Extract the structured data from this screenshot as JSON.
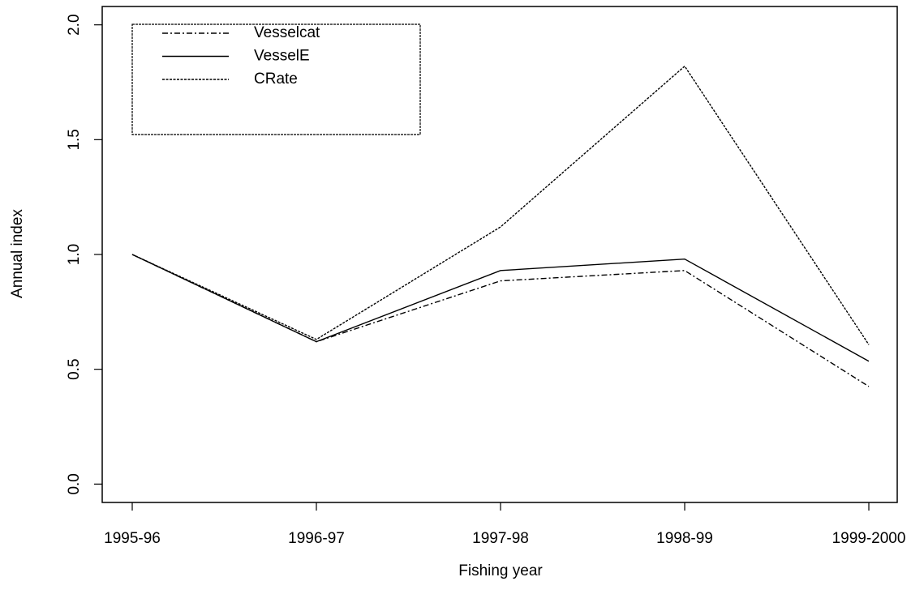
{
  "chart_data": {
    "type": "line",
    "xlabel": "Fishing year",
    "ylabel": "Annual index",
    "categories": [
      "1995-96",
      "1996-97",
      "1997-98",
      "1998-99",
      "1999-2000"
    ],
    "series": [
      {
        "name": "Vesselcat",
        "color": "#000000",
        "linestyle": "dashdot",
        "values": [
          1.0,
          0.62,
          0.885,
          0.93,
          0.425
        ]
      },
      {
        "name": "VesselE",
        "color": "#000000",
        "linestyle": "solid",
        "values": [
          1.0,
          0.62,
          0.93,
          0.98,
          0.535
        ]
      },
      {
        "name": "CRate",
        "color": "#000000",
        "linestyle": "dotted",
        "values": [
          1.0,
          0.63,
          1.12,
          1.82,
          0.607
        ]
      }
    ],
    "ylim": [
      -0.08,
      2.08
    ],
    "yticks": [
      {
        "value": 0,
        "label": "0.0"
      },
      0.5,
      {
        "value": 1,
        "label": "1.0"
      },
      1.5,
      {
        "value": 2,
        "label": "2.0"
      }
    ],
    "legend": "upper left",
    "grid": false
  }
}
